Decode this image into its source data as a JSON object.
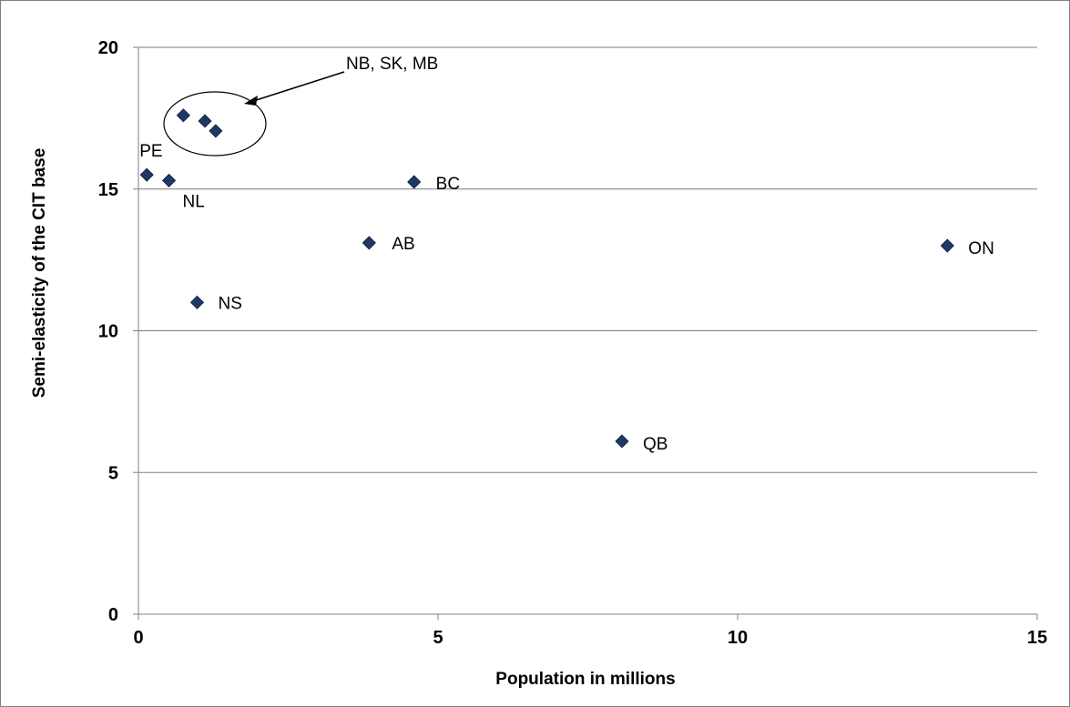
{
  "chart_data": {
    "type": "scatter",
    "title": "",
    "xlabel": "Population in millions",
    "ylabel": "Semi-elasticity of the CIT base",
    "xlim": [
      0,
      15
    ],
    "ylim": [
      0,
      20
    ],
    "x_ticks": [
      "0",
      "5",
      "10",
      "15"
    ],
    "y_ticks": [
      "0",
      "5",
      "10",
      "15",
      "20"
    ],
    "grid": "horizontal",
    "marker_color": "#1F3864",
    "points": [
      {
        "label": "PE",
        "x": 0.14,
        "y": 15.5
      },
      {
        "label": "NL",
        "x": 0.51,
        "y": 15.3
      },
      {
        "label": "",
        "x": 0.75,
        "y": 17.6
      },
      {
        "label": "",
        "x": 1.11,
        "y": 17.4
      },
      {
        "label": "",
        "x": 1.29,
        "y": 17.05
      },
      {
        "label": "NS",
        "x": 0.98,
        "y": 11.0
      },
      {
        "label": "AB",
        "x": 3.85,
        "y": 13.1
      },
      {
        "label": "BC",
        "x": 4.6,
        "y": 15.25
      },
      {
        "label": "QB",
        "x": 8.07,
        "y": 6.1
      },
      {
        "label": "ON",
        "x": 13.5,
        "y": 13.0
      }
    ],
    "annotation": {
      "text": "NB, SK, MB"
    }
  }
}
